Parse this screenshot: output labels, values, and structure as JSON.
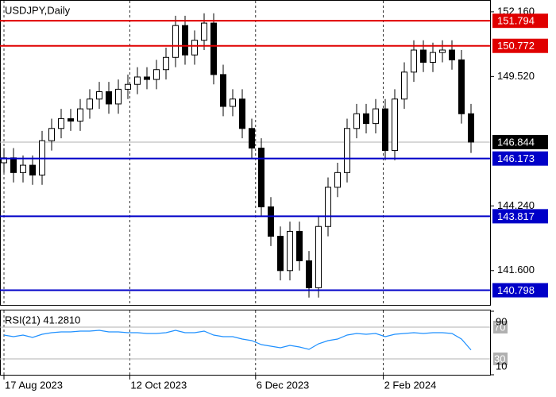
{
  "chart_data": {
    "type": "candlestick",
    "title": "USDJPY,Daily",
    "open": [
      146.0,
      146.2,
      145.6,
      145.9,
      145.5,
      146.9,
      147.4,
      147.8,
      147.7,
      148.2,
      148.6,
      148.9,
      148.4,
      149.0,
      149.2,
      149.5,
      149.4,
      149.8,
      150.3,
      151.6,
      150.4,
      151.0,
      151.7,
      149.6,
      148.3,
      148.6,
      147.4,
      146.6,
      144.2,
      143.0,
      141.6,
      143.2,
      142.0,
      140.9,
      143.4,
      145.0,
      145.6,
      147.4,
      148.0,
      147.6,
      148.2,
      146.5,
      148.6,
      149.7,
      150.6,
      150.1,
      150.5,
      150.6,
      150.2,
      148.0
    ],
    "high": [
      146.6,
      146.6,
      146.3,
      146.3,
      147.3,
      147.8,
      148.2,
      148.2,
      148.6,
      149.0,
      149.3,
      149.3,
      149.4,
      149.6,
      149.9,
      149.9,
      150.2,
      150.7,
      152.0,
      152.0,
      151.4,
      152.1,
      152.1,
      150.0,
      149.0,
      149.0,
      147.8,
      147.0,
      144.6,
      143.4,
      143.6,
      143.6,
      142.4,
      143.8,
      145.4,
      146.0,
      147.8,
      148.4,
      148.4,
      148.6,
      148.6,
      149.0,
      150.1,
      151.0,
      151.0,
      150.9,
      151.0,
      151.0,
      150.6,
      148.4
    ],
    "low": [
      145.6,
      145.2,
      145.2,
      145.1,
      145.1,
      146.5,
      147.0,
      147.3,
      147.3,
      147.8,
      148.2,
      148.0,
      148.0,
      148.6,
      148.8,
      149.0,
      149.0,
      149.4,
      149.9,
      150.0,
      150.0,
      150.6,
      149.2,
      147.9,
      147.9,
      147.0,
      146.2,
      143.8,
      142.6,
      141.2,
      141.2,
      141.6,
      140.5,
      140.5,
      143.0,
      144.6,
      145.2,
      147.0,
      147.2,
      147.2,
      146.1,
      146.1,
      148.2,
      149.3,
      149.7,
      149.7,
      150.1,
      149.8,
      147.6,
      146.4
    ],
    "close": [
      146.2,
      145.6,
      145.9,
      145.5,
      146.9,
      147.4,
      147.8,
      147.7,
      148.2,
      148.6,
      148.9,
      148.4,
      149.0,
      149.2,
      149.5,
      149.4,
      149.8,
      150.3,
      151.6,
      150.4,
      151.0,
      151.7,
      149.6,
      148.3,
      148.6,
      147.4,
      146.6,
      144.2,
      143.0,
      141.6,
      143.2,
      142.0,
      140.9,
      143.4,
      145.0,
      145.6,
      147.4,
      148.0,
      147.6,
      148.2,
      146.5,
      148.6,
      149.7,
      150.6,
      150.1,
      150.5,
      150.6,
      150.2,
      148.0,
      146.844
    ],
    "ylim": [
      140.2,
      152.61
    ],
    "yticks": [
      {
        "value": 152.16,
        "label": "152.160"
      },
      {
        "value": 149.52,
        "label": "149.520"
      },
      {
        "value": 144.24,
        "label": "144.240"
      },
      {
        "value": 141.6,
        "label": "141.600"
      }
    ],
    "levels": [
      {
        "value": 151.794,
        "color": "#e00000"
      },
      {
        "value": 150.772,
        "color": "#e00000"
      },
      {
        "value": 146.173,
        "color": "#0000c8"
      },
      {
        "value": 143.817,
        "color": "#0000c8"
      },
      {
        "value": 140.798,
        "color": "#0000c8"
      }
    ],
    "current_price": 146.844,
    "xticks": [
      {
        "value": 0,
        "label": "17 Aug 2023"
      },
      {
        "value": 13.2,
        "label": "12 Oct 2023"
      },
      {
        "value": 26.4,
        "label": "6 Dec 2023"
      },
      {
        "value": 39.8,
        "label": "2 Feb 2024"
      }
    ],
    "rsi": {
      "title": "RSI(21) 41.2810",
      "color": "#1e90ff",
      "values": [
        60,
        58,
        60,
        57,
        61,
        63,
        64,
        64,
        65,
        65,
        66,
        64,
        64,
        63,
        63,
        62,
        62,
        63,
        66,
        63,
        63,
        65,
        60,
        58,
        58,
        55,
        53,
        48,
        46,
        44,
        47,
        45,
        42,
        49,
        53,
        55,
        60,
        62,
        61,
        62,
        58,
        61,
        62,
        63,
        62,
        63,
        63,
        62,
        55,
        41.281
      ],
      "ylim": [
        10,
        90
      ],
      "yticks": [
        90,
        10
      ],
      "levels": [
        70,
        30
      ]
    }
  }
}
